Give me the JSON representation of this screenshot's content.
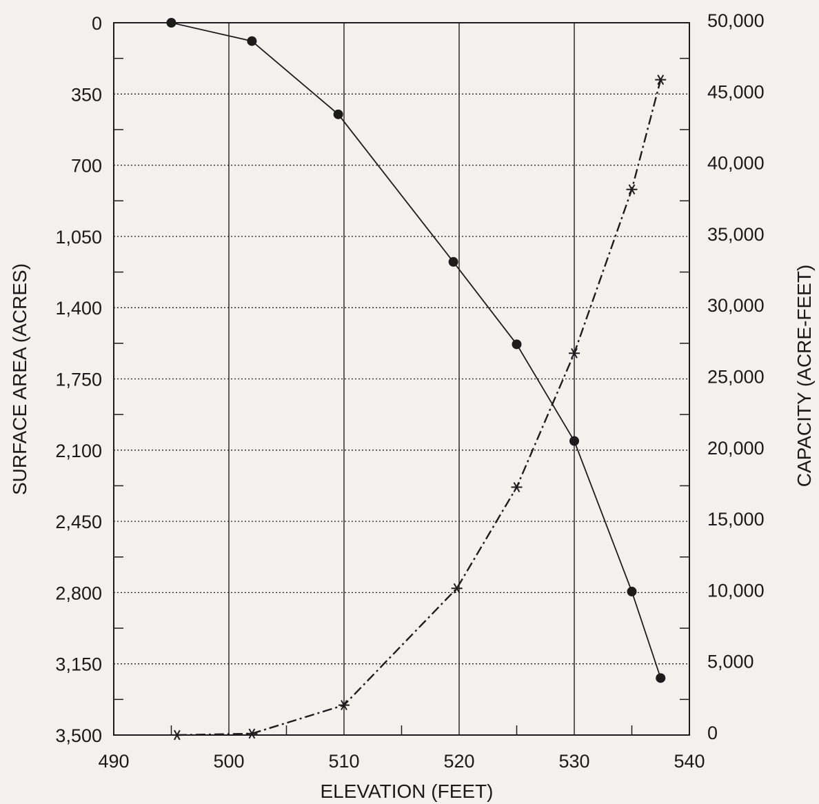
{
  "chart_data": {
    "type": "line",
    "title": "",
    "xlabel": "ELEVATION (FEET)",
    "ylabel_left": "SURFACE AREA (ACRES)",
    "ylabel_right": "CAPACITY (ACRE-FEET)",
    "x_ticks": [
      "490",
      "500",
      "510",
      "520",
      "530",
      "540"
    ],
    "y_left_ticks": [
      "0",
      "350",
      "700",
      "1,050",
      "1,400",
      "1,750",
      "2,100",
      "2,450",
      "2,800",
      "3,150",
      "3,500"
    ],
    "y_right_ticks": [
      "0",
      "5,000",
      "10,000",
      "15,000",
      "20,000",
      "25,000",
      "30,000",
      "35,000",
      "40,000",
      "45,000",
      "50,000"
    ],
    "xlim": [
      490,
      540
    ],
    "ylim_left": [
      0,
      3500
    ],
    "y_left_inverted": true,
    "ylim_right": [
      0,
      50000
    ],
    "grid": true,
    "series": [
      {
        "axis": "left",
        "marker": "dot",
        "line_style": "solid",
        "x": [
          495.0,
          502.0,
          509.5,
          519.5,
          525.0,
          530.0,
          535.0,
          537.5
        ],
        "y": [
          0,
          90,
          450,
          1175,
          1580,
          2055,
          2795,
          3220
        ]
      },
      {
        "axis": "right",
        "marker": "star",
        "line_style": "dash-dot",
        "x": [
          495.5,
          502.0,
          510.0,
          519.8,
          525.0,
          530.0,
          535.0,
          537.5
        ],
        "y": [
          0,
          100,
          2100,
          10300,
          17400,
          26800,
          38300,
          46000
        ]
      }
    ]
  }
}
